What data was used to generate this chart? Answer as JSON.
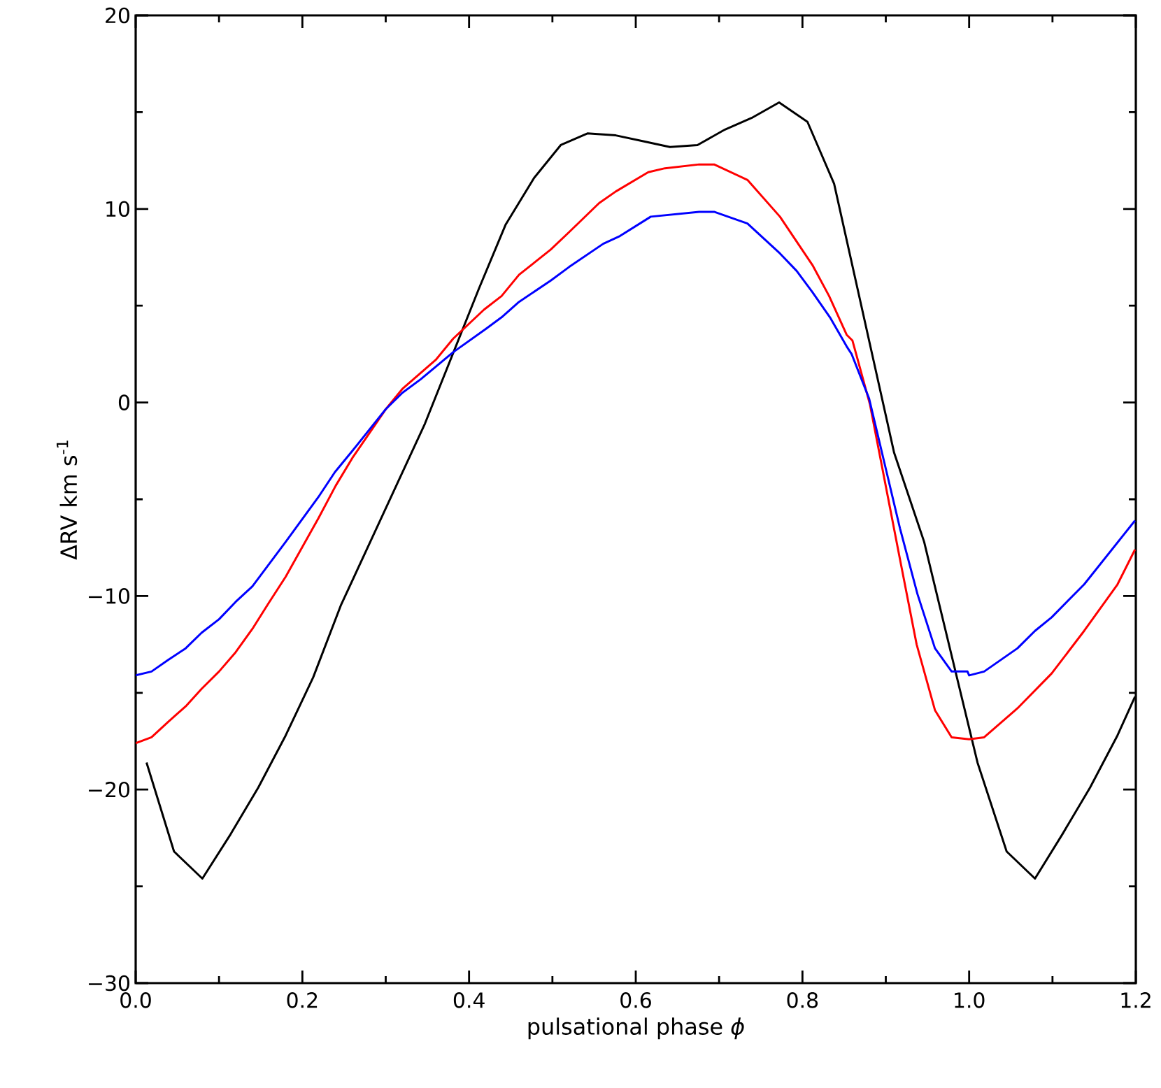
{
  "chart_data": {
    "type": "line",
    "xlabel": "pulsational phase *ϕ*",
    "ylabel": "ΔRV   km s$^{-1}$",
    "xlim": [
      0,
      1.2
    ],
    "ylim": [
      -30,
      20
    ],
    "xticks": [
      {
        "value": 0,
        "label": "0.0"
      },
      {
        "value": 0.2,
        "label": "0.2"
      },
      {
        "value": 0.4,
        "label": "0.4"
      },
      {
        "value": 0.6,
        "label": "0.6"
      },
      {
        "value": 0.8,
        "label": "0.8"
      },
      {
        "value": 1.0,
        "label": "1.0"
      },
      {
        "value": 1.2,
        "label": "1.2"
      }
    ],
    "yticks": [
      {
        "value": -30,
        "label": "−30"
      },
      {
        "value": -20,
        "label": "−20"
      },
      {
        "value": -10,
        "label": "−10"
      },
      0,
      10,
      20
    ],
    "marker": "none",
    "line_style": "solid",
    "series": [
      {
        "color": "#000000",
        "x": [
          0.013,
          0.046,
          0.08,
          0.114,
          0.147,
          0.18,
          0.213,
          0.246,
          0.347,
          0.412,
          0.444,
          0.478,
          0.51,
          0.542,
          0.576,
          0.609,
          0.641,
          0.674,
          0.707,
          0.739,
          0.772,
          0.806,
          0.838,
          0.91,
          0.946,
          1.01,
          1.045,
          1.079,
          1.112,
          1.145,
          1.178,
          1.199
        ],
        "values": [
          -18.6,
          -23.2,
          -24.6,
          -22.3,
          -19.9,
          -17.2,
          -14.2,
          -10.5,
          -1.1,
          5.9,
          9.2,
          11.6,
          13.3,
          13.9,
          13.8,
          13.5,
          13.2,
          13.3,
          14.1,
          14.7,
          15.5,
          14.5,
          11.3,
          -2.6,
          -7.2,
          -18.6,
          -23.2,
          -24.6,
          -22.3,
          -19.9,
          -17.2,
          -15.2
        ]
      },
      {
        "color": "#ff0000",
        "x": [
          0,
          0.019,
          0.039,
          0.06,
          0.079,
          0.1,
          0.12,
          0.14,
          0.159,
          0.18,
          0.219,
          0.24,
          0.261,
          0.3,
          0.32,
          0.36,
          0.381,
          0.418,
          0.439,
          0.46,
          0.498,
          0.52,
          0.556,
          0.576,
          0.615,
          0.635,
          0.676,
          0.694,
          0.734,
          0.773,
          0.812,
          0.832,
          0.853,
          0.86,
          0.881,
          0.917,
          0.937,
          0.959,
          0.979,
          1.0,
          1.018,
          1.058,
          1.099,
          1.138,
          1.178,
          1.199
        ],
        "values": [
          -17.6,
          -17.3,
          -16.5,
          -15.7,
          -14.8,
          -13.9,
          -12.9,
          -11.7,
          -10.4,
          -9.0,
          -6.0,
          -4.3,
          -2.8,
          -0.35,
          0.7,
          2.2,
          3.3,
          4.8,
          5.5,
          6.6,
          7.9,
          8.8,
          10.3,
          10.9,
          11.9,
          12.1,
          12.3,
          12.3,
          11.5,
          9.6,
          7.1,
          5.5,
          3.5,
          3.2,
          -0.1,
          -8.1,
          -12.5,
          -15.9,
          -17.3,
          -17.4,
          -17.3,
          -15.8,
          -14.0,
          -11.8,
          -9.4,
          -7.6
        ]
      },
      {
        "color": "#0000ff",
        "x": [
          0,
          0.019,
          0.039,
          0.06,
          0.079,
          0.1,
          0.12,
          0.14,
          0.18,
          0.219,
          0.239,
          0.26,
          0.3,
          0.32,
          0.342,
          0.381,
          0.42,
          0.439,
          0.46,
          0.498,
          0.52,
          0.561,
          0.581,
          0.618,
          0.676,
          0.694,
          0.734,
          0.773,
          0.793,
          0.812,
          0.833,
          0.853,
          0.859,
          0.88,
          0.917,
          0.938,
          0.959,
          0.979,
          0.998,
          1.0,
          1.018,
          1.058,
          1.079,
          1.099,
          1.138,
          1.199
        ],
        "values": [
          -14.1,
          -13.9,
          -13.3,
          -12.7,
          -11.9,
          -11.2,
          -10.3,
          -9.5,
          -7.2,
          -4.9,
          -3.6,
          -2.5,
          -0.35,
          0.5,
          1.2,
          2.6,
          3.8,
          4.4,
          5.2,
          6.3,
          7.0,
          8.2,
          8.6,
          9.6,
          9.85,
          9.85,
          9.25,
          7.7,
          6.8,
          5.7,
          4.4,
          2.9,
          2.5,
          0.2,
          -6.5,
          -9.9,
          -12.7,
          -13.9,
          -13.9,
          -14.1,
          -13.9,
          -12.7,
          -11.8,
          -11.1,
          -9.4,
          -6.1
        ]
      }
    ]
  }
}
